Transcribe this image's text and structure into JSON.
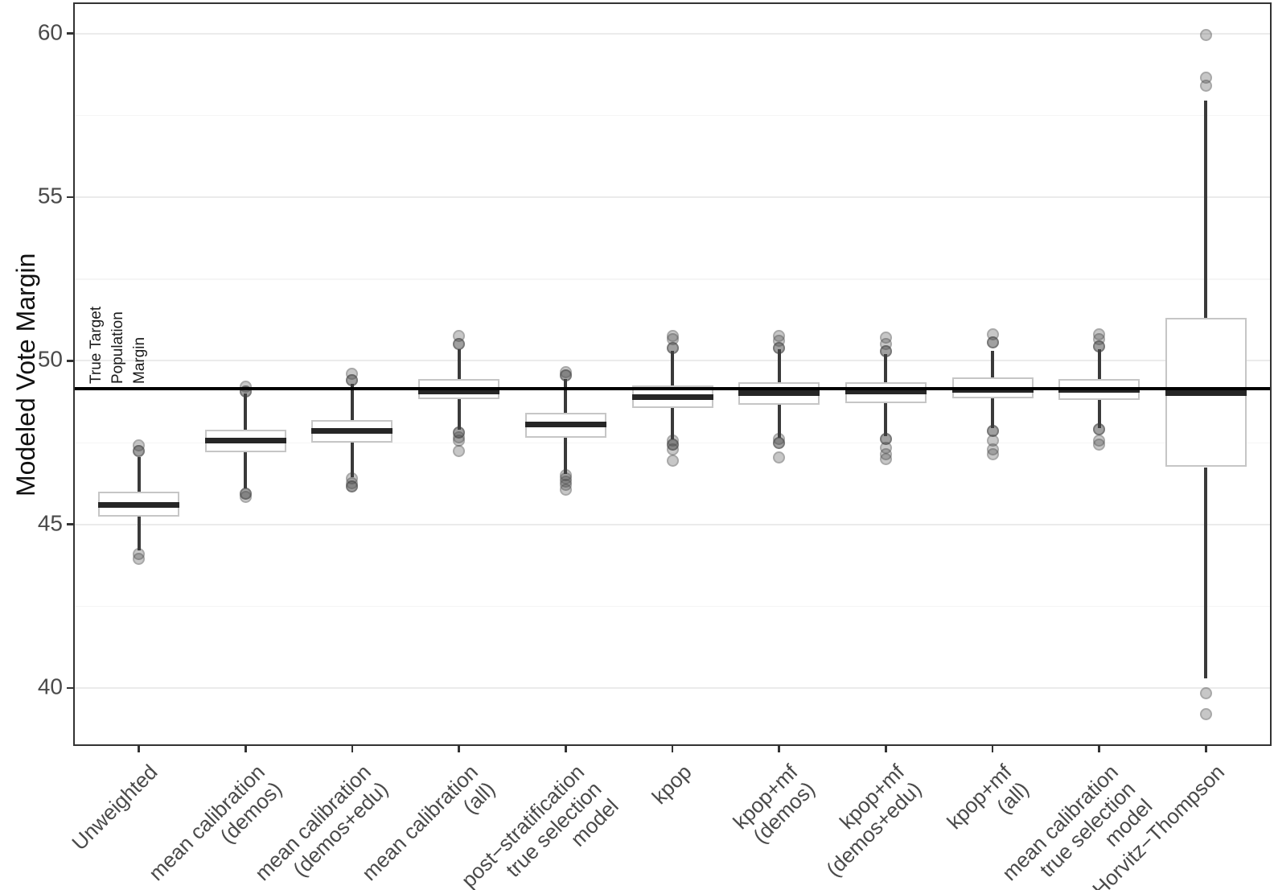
{
  "chart_data": {
    "type": "boxplot",
    "title": "",
    "xlabel": "",
    "ylabel": "Modeled Vote Margin",
    "ylim": [
      38.28,
      60.9
    ],
    "yticks": [
      60,
      55,
      50,
      45,
      40
    ],
    "minor_gridlines": [
      57.5,
      52.5,
      47.5,
      42.5
    ],
    "grid": "major+minor horizontal, white panel, light gray lines",
    "legend_position": "none",
    "reference_line": {
      "value": 49.15,
      "label": "True Target\nPopulation\nMargin"
    },
    "categories": [
      "Unweighted",
      "mean calibration\n(demos)",
      "mean calibration\n(demos+edu)",
      "mean calibration\n(all)",
      "post−stratification\ntrue selection\nmodel",
      "kpop",
      "kpop+mf\n(demos)",
      "kpop+mf\n(demos+edu)",
      "kpop+mf\n(all)",
      "mean calibration\ntrue selection\nmodel",
      "Horvitz−Thompson"
    ],
    "series": [
      {
        "name": "Unweighted",
        "whisker_low": 44.2,
        "q1": 45.25,
        "median": 45.6,
        "q3": 46.0,
        "whisker_high": 47.05,
        "outliers_low": [
          44.1,
          43.95
        ],
        "outliers_high": [
          47.42,
          47.25,
          47.25
        ]
      },
      {
        "name": "mean calibration (demos)",
        "whisker_low": 46.1,
        "q1": 47.2,
        "median": 47.55,
        "q3": 47.9,
        "whisker_high": 49.0,
        "outliers_low": [
          45.95,
          45.95,
          45.85
        ],
        "outliers_high": [
          49.2,
          49.05,
          49.05
        ]
      },
      {
        "name": "mean calibration (demos+edu)",
        "whisker_low": 46.45,
        "q1": 47.5,
        "median": 47.85,
        "q3": 48.2,
        "whisker_high": 49.3,
        "outliers_low": [
          46.4,
          46.25,
          46.15,
          46.15
        ],
        "outliers_high": [
          49.6,
          49.4,
          49.4
        ]
      },
      {
        "name": "mean calibration (all)",
        "whisker_low": 47.9,
        "q1": 48.82,
        "median": 49.05,
        "q3": 49.45,
        "whisker_high": 50.35,
        "outliers_low": [
          47.8,
          47.8,
          47.65,
          47.55,
          47.25
        ],
        "outliers_high": [
          50.75,
          50.5,
          50.5
        ]
      },
      {
        "name": "post-stratification true selection model",
        "whisker_low": 46.55,
        "q1": 47.65,
        "median": 48.05,
        "q3": 48.4,
        "whisker_high": 49.45,
        "outliers_low": [
          46.5,
          46.4,
          46.3,
          46.2,
          46.05
        ],
        "outliers_high": [
          49.65,
          49.55,
          49.55
        ]
      },
      {
        "name": "kpop",
        "whisker_low": 47.6,
        "q1": 48.55,
        "median": 48.9,
        "q3": 49.25,
        "whisker_high": 50.3,
        "outliers_low": [
          47.55,
          47.45,
          47.45,
          47.3,
          46.95
        ],
        "outliers_high": [
          50.75,
          50.65,
          50.4,
          50.4
        ]
      },
      {
        "name": "kpop+mf (demos)",
        "whisker_low": 47.65,
        "q1": 48.65,
        "median": 49.0,
        "q3": 49.35,
        "whisker_high": 50.35,
        "outliers_low": [
          47.6,
          47.5,
          47.5,
          47.05
        ],
        "outliers_high": [
          50.75,
          50.6,
          50.4,
          50.4
        ]
      },
      {
        "name": "kpop+mf (demos+edu)",
        "whisker_low": 47.7,
        "q1": 48.7,
        "median": 49.05,
        "q3": 49.35,
        "whisker_high": 50.2,
        "outliers_low": [
          47.6,
          47.6,
          47.35,
          47.15,
          47.0
        ],
        "outliers_high": [
          50.7,
          50.5,
          50.3,
          50.3
        ]
      },
      {
        "name": "kpop+mf (all)",
        "whisker_low": 47.95,
        "q1": 48.85,
        "median": 49.12,
        "q3": 49.5,
        "whisker_high": 50.3,
        "outliers_low": [
          47.85,
          47.85,
          47.55,
          47.3,
          47.15
        ],
        "outliers_high": [
          50.8,
          50.55,
          50.55
        ]
      },
      {
        "name": "mean calibration true selection model",
        "whisker_low": 47.95,
        "q1": 48.8,
        "median": 49.1,
        "q3": 49.45,
        "whisker_high": 50.35,
        "outliers_low": [
          47.9,
          47.9,
          47.55,
          47.45
        ],
        "outliers_high": [
          50.8,
          50.65,
          50.45,
          50.45
        ]
      },
      {
        "name": "Horvitz-Thompson",
        "whisker_low": 40.3,
        "q1": 46.75,
        "median": 49.0,
        "q3": 51.3,
        "whisker_high": 57.95,
        "outliers_low": [
          39.85,
          39.2
        ],
        "outliers_high": [
          59.95,
          58.65,
          58.4
        ]
      }
    ],
    "colors": {
      "box_fill": "#ffffff",
      "box_border": "#c6c6c6",
      "median": "#262626",
      "whisker": "#3a3a3a",
      "outlier": "rgba(70,70,70,0.30)",
      "grid_major": "#ebebeb",
      "grid_minor": "#f5f5f5",
      "panel_border": "#333333",
      "axis_text": "#4a4a4a",
      "reference_line": "#000000"
    }
  }
}
